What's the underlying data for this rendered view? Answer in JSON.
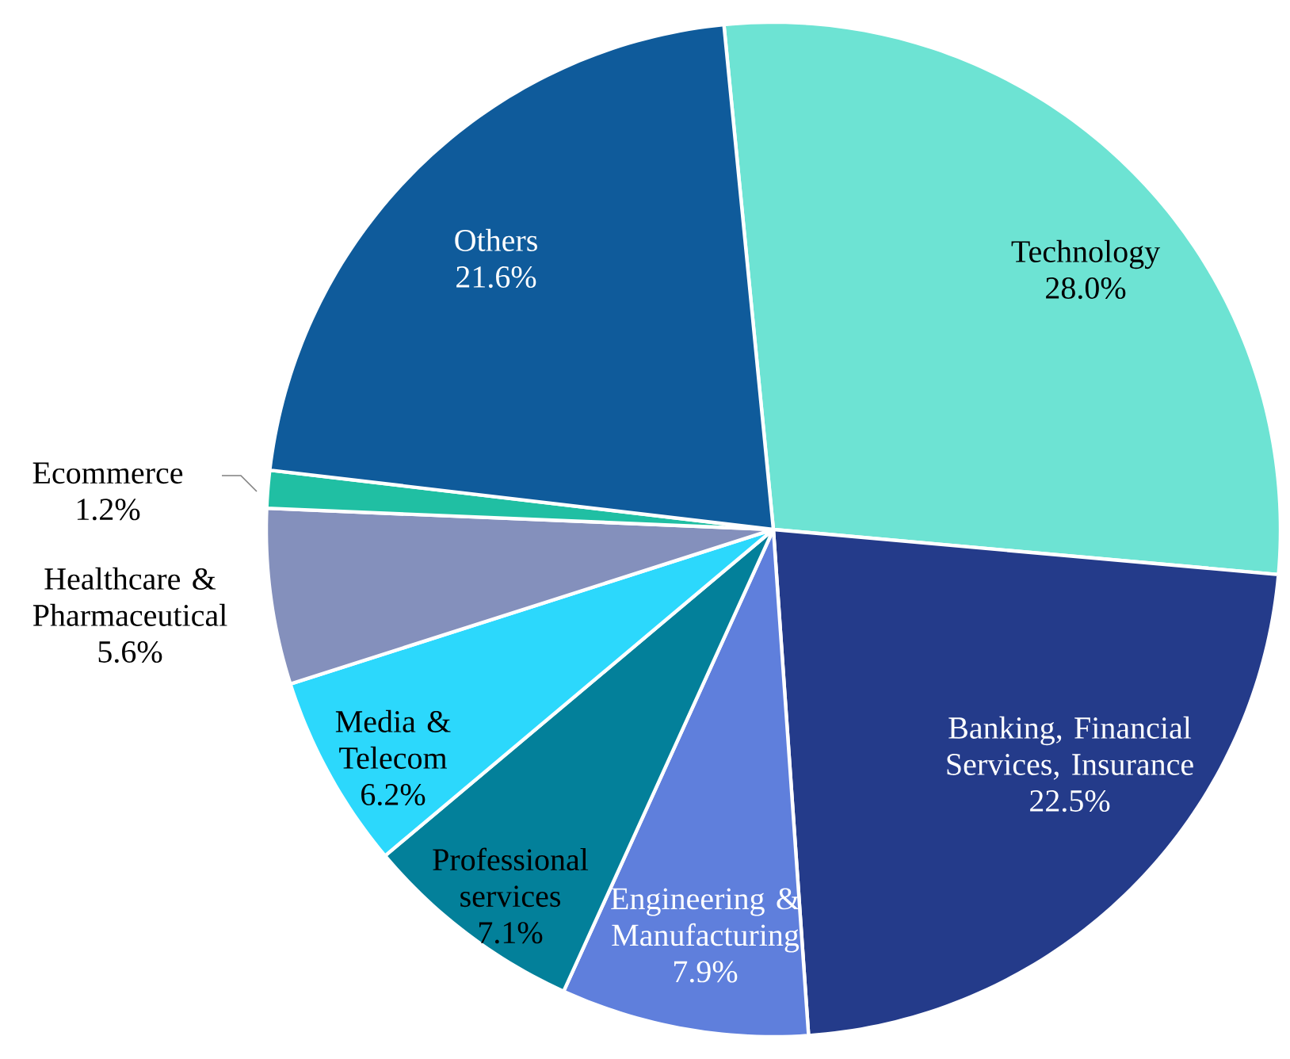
{
  "chart_data": {
    "type": "pie",
    "categories": [
      "Technology",
      "Banking, Financial Services, Insurance",
      "Engineering & Manufacturing",
      "Professional services",
      "Media & Telecom",
      "Healthcare & Pharmaceutical",
      "Ecommerce",
      "Others"
    ],
    "values": [
      28.0,
      22.5,
      7.9,
      7.1,
      6.2,
      5.6,
      1.2,
      21.6
    ],
    "value_labels": [
      "28.0%",
      "22.5%",
      "7.9%",
      "7.1%",
      "6.2%",
      "5.6%",
      "1.2%",
      "21.6%"
    ],
    "colors": [
      "#6de3d3",
      "#243b8a",
      "#5f7fdc",
      "#03809a",
      "#2cd8fc",
      "#8490bc",
      "#20bfa3",
      "#0f5b9b"
    ]
  }
}
